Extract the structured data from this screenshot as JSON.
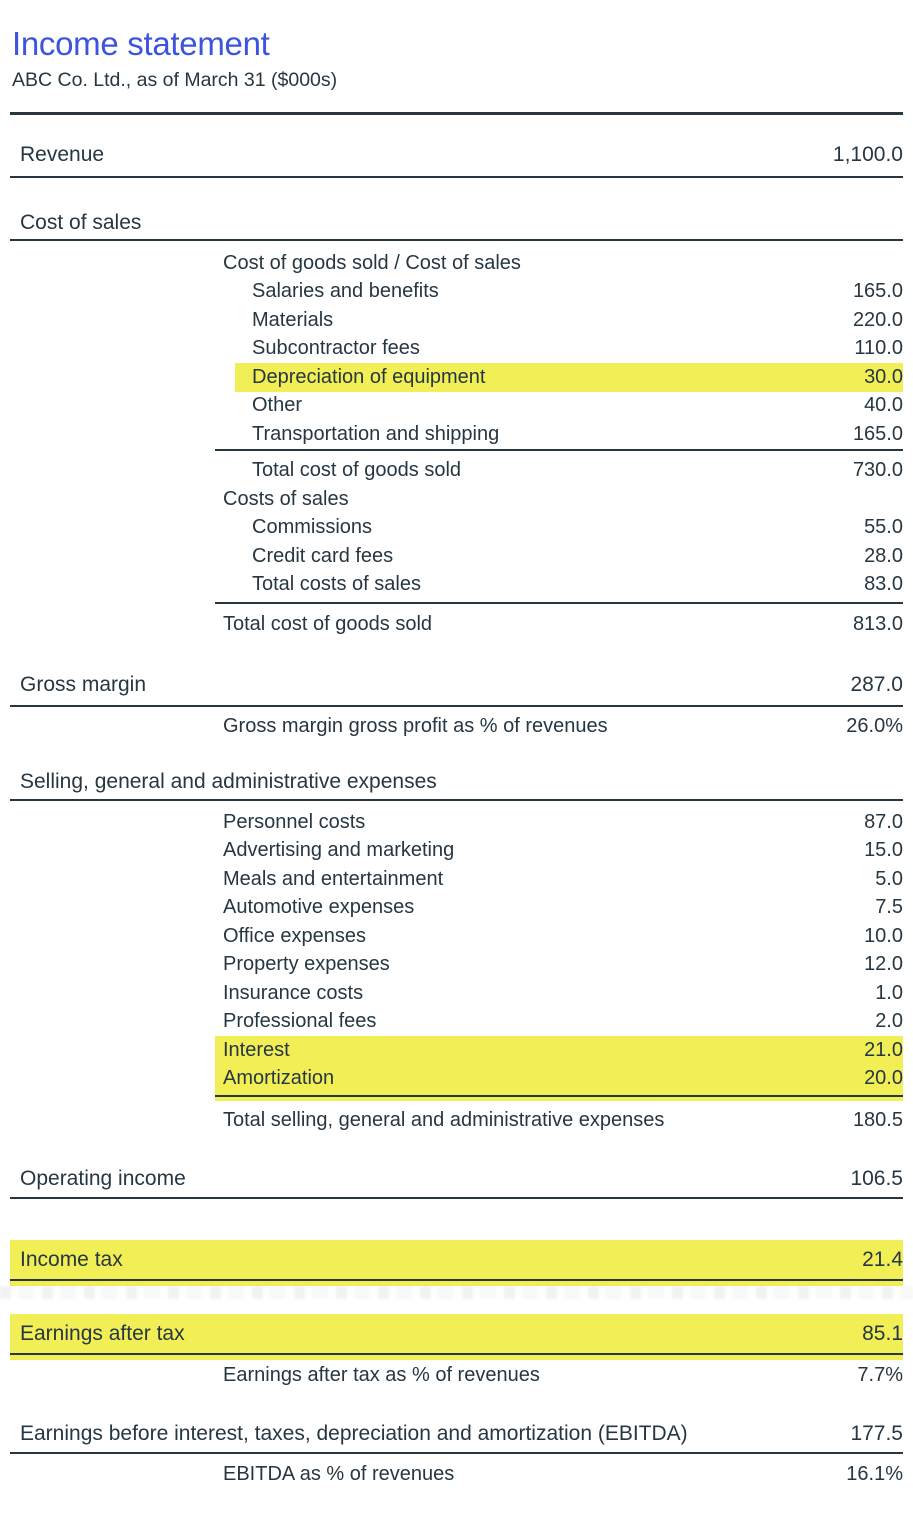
{
  "header": {
    "title": "Income statement",
    "subtitle": "ABC Co. Ltd., as of March 31 ($000s)"
  },
  "colors": {
    "accent_blue": "#3B55DC",
    "highlight_yellow": "#F2EE55",
    "text_ink": "#263742"
  },
  "rows": [
    {
      "label": "Revenue",
      "value": "1,100.0"
    },
    {
      "label": "Cost of sales"
    },
    {
      "label": "Cost of goods sold / Cost of sales"
    },
    {
      "label": "Salaries and benefits",
      "value": "165.0"
    },
    {
      "label": "Materials",
      "value": "220.0"
    },
    {
      "label": "Subcontractor fees",
      "value": "110.0"
    },
    {
      "label": "Depreciation of equipment",
      "value": "30.0",
      "highlighted": true
    },
    {
      "label": "Other",
      "value": "40.0"
    },
    {
      "label": "Transportation and shipping",
      "value": "165.0"
    },
    {
      "label": "Total cost of goods sold",
      "value": "730.0"
    },
    {
      "label": "Costs of sales"
    },
    {
      "label": "Commissions",
      "value": "55.0"
    },
    {
      "label": "Credit card fees",
      "value": "28.0"
    },
    {
      "label": "Total costs of sales",
      "value": "83.0"
    },
    {
      "label": "Total cost of goods sold",
      "value": "813.0"
    },
    {
      "label": "Gross margin",
      "value": "287.0"
    },
    {
      "label": "Gross margin gross profit as % of revenues",
      "value": "26.0%"
    },
    {
      "label": "Selling, general and administrative expenses"
    },
    {
      "label": "Personnel costs",
      "value": "87.0"
    },
    {
      "label": "Advertising and marketing",
      "value": "15.0"
    },
    {
      "label": "Meals and entertainment",
      "value": "5.0"
    },
    {
      "label": "Automotive expenses",
      "value": "7.5"
    },
    {
      "label": "Office expenses",
      "value": "10.0"
    },
    {
      "label": "Property expenses",
      "value": "12.0"
    },
    {
      "label": "Insurance costs",
      "value": "1.0"
    },
    {
      "label": "Professional fees",
      "value": "2.0"
    },
    {
      "label": "Interest",
      "value": "21.0",
      "highlighted": true
    },
    {
      "label": "Amortization",
      "value": "20.0",
      "highlighted": true
    },
    {
      "label": "Total selling, general and administrative expenses",
      "value": "180.5"
    },
    {
      "label": "Operating income",
      "value": "106.5"
    },
    {
      "label": "Income tax",
      "value": "21.4",
      "highlighted": true
    },
    {
      "label": "Earnings after tax",
      "value": "85.1",
      "highlighted": true
    },
    {
      "label": "Earnings after tax as % of revenues",
      "value": "7.7%"
    },
    {
      "label": "Earnings before interest, taxes, depreciation and amortization (EBITDA)",
      "value": "177.5"
    },
    {
      "label": "EBITDA as % of revenues",
      "value": "16.1%"
    }
  ]
}
